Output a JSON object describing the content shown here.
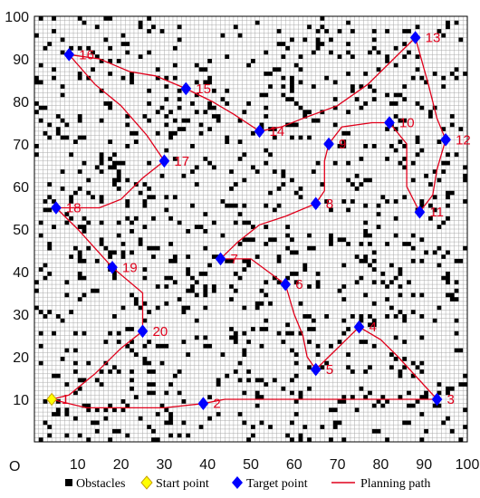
{
  "figure": {
    "origin_label": "O",
    "x_ticks": [
      "10",
      "20",
      "30",
      "40",
      "50",
      "60",
      "70",
      "80",
      "90",
      "100"
    ],
    "y_ticks": [
      "10",
      "20",
      "30",
      "40",
      "50",
      "60",
      "70",
      "80",
      "90",
      "100"
    ],
    "grid_cells": 100,
    "colors": {
      "obstacle": "#000000",
      "start": "#ffff00",
      "target": "#0000ff",
      "path": "#e0001b",
      "grid": "#aaaaaa",
      "label": "#e0001b"
    }
  },
  "legend": {
    "obstacles": "Obstacles",
    "start": "Start point",
    "target": "Target point",
    "path": "Planning path"
  },
  "start_point": {
    "label": "1",
    "x": 4,
    "y": 10
  },
  "targets": [
    {
      "label": "2",
      "x": 39,
      "y": 9
    },
    {
      "label": "3",
      "x": 93,
      "y": 10
    },
    {
      "label": "4",
      "x": 75,
      "y": 27
    },
    {
      "label": "5",
      "x": 65,
      "y": 17
    },
    {
      "label": "6",
      "x": 58,
      "y": 37
    },
    {
      "label": "7",
      "x": 43,
      "y": 43
    },
    {
      "label": "8",
      "x": 65,
      "y": 56
    },
    {
      "label": "9",
      "x": 68,
      "y": 70
    },
    {
      "label": "10",
      "x": 82,
      "y": 75
    },
    {
      "label": "11",
      "x": 89,
      "y": 54
    },
    {
      "label": "12",
      "x": 95,
      "y": 71
    },
    {
      "label": "13",
      "x": 88,
      "y": 95
    },
    {
      "label": "14",
      "x": 52,
      "y": 73
    },
    {
      "label": "15",
      "x": 35,
      "y": 83
    },
    {
      "label": "16",
      "x": 8,
      "y": 91
    },
    {
      "label": "17",
      "x": 30,
      "y": 66
    },
    {
      "label": "18",
      "x": 5,
      "y": 55
    },
    {
      "label": "19",
      "x": 18,
      "y": 41
    },
    {
      "label": "20",
      "x": 25,
      "y": 26
    }
  ],
  "path": [
    [
      4,
      10
    ],
    [
      8,
      9
    ],
    [
      12,
      8
    ],
    [
      30,
      8
    ],
    [
      39,
      9
    ],
    [
      44,
      10
    ],
    [
      60,
      10
    ],
    [
      93,
      10
    ],
    [
      84,
      20
    ],
    [
      80,
      24
    ],
    [
      75,
      27
    ],
    [
      72,
      24
    ],
    [
      68,
      20
    ],
    [
      65,
      17
    ],
    [
      63,
      20
    ],
    [
      62,
      25
    ],
    [
      60,
      30
    ],
    [
      58,
      37
    ],
    [
      54,
      40
    ],
    [
      50,
      43
    ],
    [
      43,
      43
    ],
    [
      47,
      47
    ],
    [
      52,
      51
    ],
    [
      58,
      53
    ],
    [
      65,
      56
    ],
    [
      67,
      59
    ],
    [
      67,
      66
    ],
    [
      68,
      70
    ],
    [
      71,
      74
    ],
    [
      78,
      75
    ],
    [
      82,
      75
    ],
    [
      86,
      70
    ],
    [
      86,
      60
    ],
    [
      89,
      54
    ],
    [
      92,
      58
    ],
    [
      93,
      64
    ],
    [
      95,
      71
    ],
    [
      93,
      76
    ],
    [
      91,
      84
    ],
    [
      88,
      95
    ],
    [
      83,
      90
    ],
    [
      77,
      84
    ],
    [
      70,
      79
    ],
    [
      62,
      76
    ],
    [
      57,
      74
    ],
    [
      52,
      73
    ],
    [
      46,
      77
    ],
    [
      41,
      80
    ],
    [
      35,
      83
    ],
    [
      28,
      86
    ],
    [
      22,
      87
    ],
    [
      15,
      90
    ],
    [
      8,
      91
    ],
    [
      14,
      84
    ],
    [
      20,
      79
    ],
    [
      26,
      72
    ],
    [
      30,
      66
    ],
    [
      25,
      62
    ],
    [
      20,
      57
    ],
    [
      15,
      55
    ],
    [
      5,
      55
    ],
    [
      10,
      50
    ],
    [
      18,
      41
    ],
    [
      25,
      35
    ],
    [
      25,
      26
    ],
    [
      20,
      22
    ],
    [
      14,
      16
    ],
    [
      8,
      11
    ],
    [
      4,
      10
    ]
  ]
}
